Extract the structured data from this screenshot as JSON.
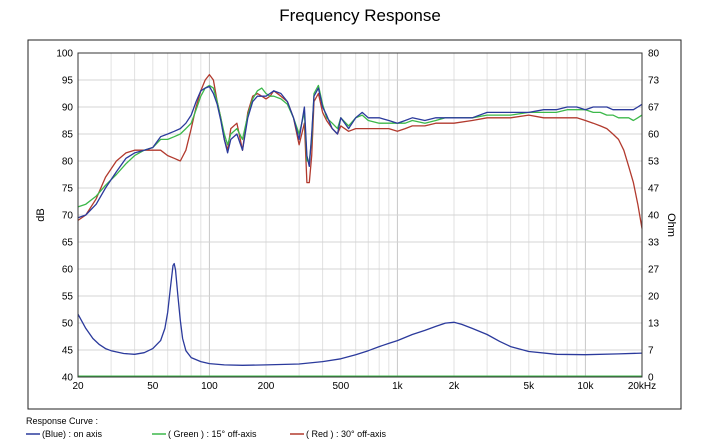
{
  "chart_data": {
    "type": "line",
    "title": "Frequency Response",
    "xlabel": "",
    "ylabel": "dB",
    "ylabel_right": "Ohm",
    "xscale": "log",
    "xlim": [
      20,
      20000
    ],
    "ylim": [
      40,
      100
    ],
    "ylim_right": [
      0,
      80
    ],
    "grid": true,
    "x_ticks": [
      "20",
      "50",
      "100",
      "200",
      "500",
      "1k",
      "2k",
      "5k",
      "10k",
      "20kHz"
    ],
    "y_ticks": [
      "40",
      "45",
      "50",
      "55",
      "60",
      "65",
      "70",
      "75",
      "80",
      "85",
      "90",
      "95",
      "100"
    ],
    "y_ticks_right": [
      "0",
      "7",
      "13",
      "20",
      "27",
      "33",
      "40",
      "47",
      "53",
      "60",
      "67",
      "73",
      "80"
    ],
    "legend_title": "Response Curve :",
    "legend": [
      {
        "label": "(Blue) : on axis",
        "color": "#2b3a9c"
      },
      {
        "label": "( Green ) : 15° off-axis",
        "color": "#3cb84a"
      },
      {
        "label": "( Red ) : 30° off-axis",
        "color": "#b23a2e"
      }
    ],
    "series": [
      {
        "color": "#2b3a9c",
        "x": [
          20,
          22,
          25,
          28,
          32,
          36,
          40,
          45,
          50,
          55,
          60,
          65,
          70,
          75,
          80,
          85,
          90,
          95,
          100,
          105,
          110,
          115,
          120,
          125,
          130,
          140,
          150,
          160,
          170,
          180,
          190,
          200,
          210,
          220,
          240,
          260,
          280,
          300,
          320,
          330,
          340,
          350,
          360,
          380,
          400,
          420,
          450,
          480,
          500,
          550,
          600,
          650,
          700,
          800,
          900,
          1000,
          1100,
          1200,
          1400,
          1600,
          1800,
          2000,
          2500,
          3000,
          4000,
          5000,
          6000,
          7000,
          8000,
          9000,
          10000,
          11000,
          12000,
          13000,
          14000,
          15000,
          16000,
          17000,
          18000,
          19000,
          20000
        ],
        "y": [
          69.5,
          70,
          72,
          75,
          78,
          80.5,
          81.5,
          82,
          82.5,
          84.5,
          85,
          85.5,
          86,
          87,
          88.5,
          91,
          93,
          93.5,
          93.8,
          92.5,
          90.5,
          87.5,
          84,
          81.5,
          84,
          85,
          82,
          88,
          91,
          92,
          92,
          92,
          92.5,
          93,
          92.5,
          91,
          88,
          84,
          90,
          81,
          79,
          85,
          92,
          93.5,
          90,
          88.5,
          86,
          85,
          88,
          86,
          88,
          89,
          88,
          88,
          87.5,
          87,
          87.5,
          88,
          87.5,
          88,
          88,
          88,
          88,
          89,
          89,
          89,
          89.5,
          89.5,
          90,
          90,
          89.5,
          90,
          90,
          90,
          89.5,
          89.5,
          89.5,
          89.5,
          89.5,
          90,
          90.5
        ]
      },
      {
        "color": "#3cb84a",
        "x": [
          20,
          22,
          25,
          28,
          32,
          36,
          40,
          45,
          50,
          55,
          60,
          65,
          70,
          75,
          80,
          85,
          90,
          95,
          100,
          105,
          110,
          115,
          120,
          125,
          130,
          140,
          150,
          160,
          170,
          180,
          190,
          200,
          210,
          220,
          240,
          260,
          280,
          300,
          320,
          330,
          340,
          350,
          360,
          380,
          400,
          420,
          450,
          480,
          500,
          550,
          600,
          650,
          700,
          800,
          900,
          1000,
          1100,
          1200,
          1400,
          1600,
          1800,
          2000,
          2500,
          3000,
          4000,
          5000,
          6000,
          7000,
          8000,
          9000,
          10000,
          11000,
          12000,
          13000,
          14000,
          15000,
          16000,
          17000,
          18000,
          19000,
          20000
        ],
        "y": [
          71.5,
          72,
          73.5,
          75.5,
          77.5,
          79.5,
          81,
          82,
          82.5,
          84,
          84,
          84.5,
          85,
          86,
          87,
          89.5,
          92,
          93.5,
          94,
          93.5,
          91,
          88,
          85,
          83,
          85,
          86,
          84,
          88.5,
          91.5,
          93,
          93.5,
          92.5,
          92,
          92,
          91.5,
          90.5,
          88,
          85,
          89,
          80,
          80,
          84,
          92.5,
          94,
          90.5,
          88,
          87,
          86,
          88,
          86.5,
          88,
          88.5,
          87.5,
          87,
          87,
          87,
          87,
          87.5,
          87,
          87.5,
          88,
          88,
          88,
          88.5,
          88.5,
          89,
          89,
          89,
          89.5,
          89.5,
          89.5,
          89,
          89,
          88.5,
          88.5,
          88,
          88,
          88,
          87.5,
          88,
          88.5
        ]
      },
      {
        "color": "#b23a2e",
        "x": [
          20,
          22,
          25,
          28,
          32,
          36,
          40,
          45,
          50,
          55,
          60,
          65,
          70,
          75,
          80,
          85,
          90,
          95,
          100,
          105,
          110,
          115,
          120,
          125,
          130,
          140,
          150,
          160,
          170,
          180,
          190,
          200,
          210,
          220,
          240,
          260,
          280,
          300,
          320,
          330,
          340,
          350,
          360,
          380,
          400,
          420,
          450,
          480,
          500,
          550,
          600,
          650,
          700,
          800,
          900,
          1000,
          1100,
          1200,
          1400,
          1600,
          1800,
          2000,
          2500,
          3000,
          4000,
          5000,
          6000,
          7000,
          8000,
          9000,
          10000,
          11000,
          12000,
          13000,
          14000,
          15000,
          16000,
          17000,
          18000,
          19000,
          20000
        ],
        "y": [
          69,
          70,
          73,
          77,
          80,
          81.5,
          82,
          82,
          82,
          82,
          81,
          80.5,
          80,
          82,
          86,
          90,
          93,
          95,
          96,
          95,
          91,
          88,
          84,
          82,
          86,
          87,
          82,
          89,
          92,
          92.5,
          92,
          91.5,
          92,
          93,
          92,
          91,
          88,
          83,
          87,
          76,
          76,
          81,
          91,
          92.5,
          89,
          87.5,
          86,
          85,
          86.5,
          85.5,
          86,
          86,
          86,
          86,
          86,
          85.5,
          86,
          86.5,
          86.5,
          87,
          87,
          87,
          87.5,
          88,
          88,
          88.5,
          88,
          88,
          88,
          88,
          87.5,
          87,
          86.5,
          86,
          85,
          84,
          82,
          79,
          76,
          72,
          67.5
        ]
      },
      {
        "color": "#2b3a9c",
        "axis": "right",
        "x": [
          20,
          22,
          24,
          26,
          28,
          30,
          35,
          40,
          45,
          50,
          55,
          58,
          60,
          62,
          64,
          65,
          66,
          68,
          70,
          72,
          75,
          80,
          90,
          100,
          120,
          150,
          200,
          300,
          400,
          500,
          600,
          700,
          800,
          900,
          1000,
          1200,
          1400,
          1600,
          1800,
          2000,
          2200,
          2500,
          3000,
          3500,
          4000,
          5000,
          7000,
          10000,
          15000,
          20000
        ],
        "y": [
          15.5,
          12,
          9.5,
          8,
          7,
          6.5,
          5.8,
          5.6,
          6,
          7,
          9,
          12,
          16,
          22,
          27.5,
          28,
          26.5,
          20,
          14,
          9.5,
          6.5,
          4.8,
          3.8,
          3.3,
          3,
          2.9,
          3,
          3.2,
          3.8,
          4.5,
          5.5,
          6.5,
          7.5,
          8.3,
          9,
          10.5,
          11.5,
          12.5,
          13.3,
          13.5,
          13,
          12,
          10.5,
          8.8,
          7.5,
          6.3,
          5.6,
          5.5,
          5.7,
          5.9
        ]
      },
      {
        "color": "#3cb84a",
        "axis": "right",
        "x": [
          20,
          20000
        ],
        "y": [
          0.2,
          0.2
        ]
      }
    ]
  }
}
